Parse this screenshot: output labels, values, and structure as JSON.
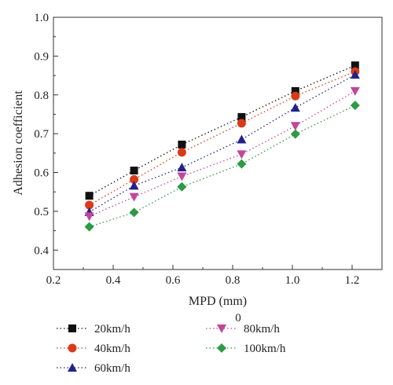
{
  "chart_data": {
    "type": "scatter",
    "title": "",
    "xlabel": "MPD (mm)",
    "ylabel": "Adhesion coefficient",
    "xlim": [
      0.2,
      1.3
    ],
    "ylim": [
      0.35,
      1.0
    ],
    "x_ticks": [
      "0.2",
      "0.4",
      "0.6",
      "0.8",
      "1.0",
      "1.2"
    ],
    "y_ticks": [
      "0.4",
      "0.5",
      "0.6",
      "0.7",
      "0.8",
      "0.9",
      "1.0"
    ],
    "grid": false,
    "legend_position": "bottom",
    "legend_stray_text": "0",
    "x": [
      0.32,
      0.47,
      0.63,
      0.83,
      1.01,
      1.21
    ],
    "series": [
      {
        "name": "20km/h",
        "marker": "square",
        "color": "#111111",
        "values": [
          0.54,
          0.605,
          0.672,
          0.743,
          0.81,
          0.876
        ]
      },
      {
        "name": "40km/h",
        "marker": "circle",
        "color": "#d93a1a",
        "values": [
          0.516,
          0.582,
          0.652,
          0.727,
          0.797,
          0.86
        ]
      },
      {
        "name": "60km/h",
        "marker": "triangle-up",
        "color": "#22228a",
        "values": [
          0.498,
          0.566,
          0.613,
          0.685,
          0.767,
          0.852
        ]
      },
      {
        "name": "80km/h",
        "marker": "triangle-down",
        "color": "#c2479a",
        "values": [
          0.487,
          0.537,
          0.59,
          0.647,
          0.72,
          0.81
        ]
      },
      {
        "name": "100km/h",
        "marker": "diamond",
        "color": "#2e9a44",
        "values": [
          0.46,
          0.497,
          0.563,
          0.622,
          0.699,
          0.773
        ]
      }
    ]
  }
}
